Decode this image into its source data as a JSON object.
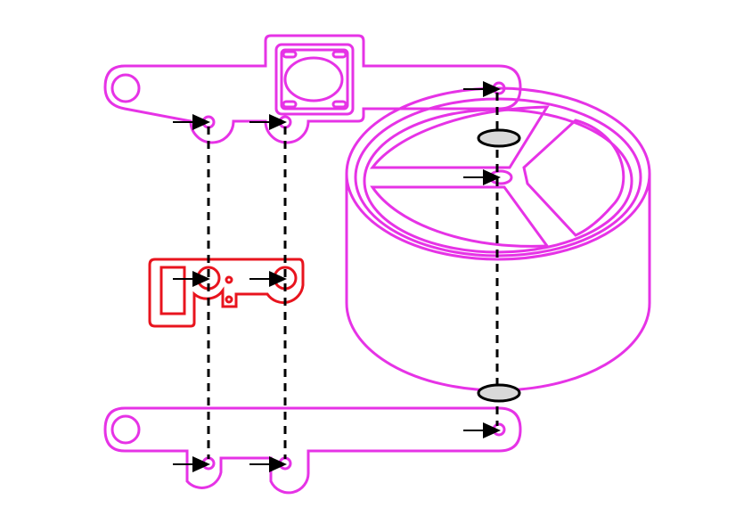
{
  "diagram": {
    "kind": "exploded assembly drawing",
    "colors": {
      "background": "#ffffff",
      "part_outline": "#e633e6",
      "highlight_part": "#e8141e",
      "axis_line": "#000000",
      "washer_fill": "#d9d9d9",
      "arrow": "#000000"
    },
    "parts": [
      {
        "name": "upper-bracket-arm",
        "color": "part_outline"
      },
      {
        "name": "flange-plate",
        "color": "part_outline"
      },
      {
        "name": "cylindrical-hub-with-three-spokes",
        "color": "part_outline"
      },
      {
        "name": "middle-link-plate",
        "color": "highlight_part"
      },
      {
        "name": "lower-bracket-arm",
        "color": "part_outline"
      },
      {
        "name": "upper-washer",
        "color": "washer_fill"
      },
      {
        "name": "lower-washer",
        "color": "washer_fill"
      }
    ],
    "fastener_axes": 3,
    "insertion_arrows": 9
  }
}
